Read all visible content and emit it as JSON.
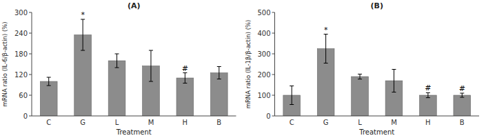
{
  "chart_data": [
    {
      "type": "bar",
      "title": "(A)",
      "categories": [
        "C",
        "G",
        "L",
        "M",
        "H",
        "B"
      ],
      "values": [
        100,
        235,
        160,
        145,
        110,
        125
      ],
      "errors": [
        12,
        45,
        20,
        45,
        15,
        18
      ],
      "ylabel": "mRNA ratio (IL-6/β-actin) (%)",
      "xlabel": "Treatment",
      "ylim": [
        0,
        300
      ],
      "yticks": [
        0,
        60,
        120,
        180,
        240,
        300
      ],
      "annotations": [
        {
          "category": "G",
          "text": "*"
        },
        {
          "category": "H",
          "text": "#"
        }
      ],
      "color": "#8c8c8c",
      "grid": false
    },
    {
      "type": "bar",
      "title": "(B)",
      "categories": [
        "C",
        "G",
        "L",
        "M",
        "H",
        "B"
      ],
      "values": [
        100,
        325,
        190,
        170,
        100,
        100
      ],
      "errors": [
        45,
        70,
        12,
        55,
        12,
        10
      ],
      "ylabel": "mRNA ratio (IL-1β/β-actin) (%)",
      "xlabel": "Treatment",
      "ylim": [
        0,
        500
      ],
      "yticks": [
        0,
        100,
        200,
        300,
        400,
        500
      ],
      "annotations": [
        {
          "category": "G",
          "text": "*"
        },
        {
          "category": "H",
          "text": "#"
        },
        {
          "category": "B",
          "text": "#"
        }
      ],
      "color": "#8c8c8c",
      "grid": false
    }
  ]
}
